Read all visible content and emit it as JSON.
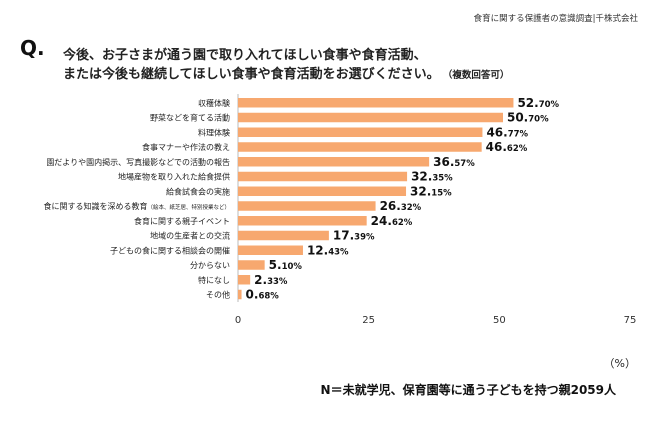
{
  "header": {
    "source": "食育に関する保護者の意識調査|千株式会社"
  },
  "question": {
    "mark": "Q.",
    "line1": "今後、お子さまが通う園で取り入れてほしい食事や食育活動、",
    "line2": "または今後も継続してほしい食事や食育活動をお選びください。",
    "note": "（複数回答可）"
  },
  "chart_data": {
    "type": "bar",
    "orientation": "horizontal",
    "categories": [
      "収穫体験",
      "野菜などを育てる活動",
      "料理体験",
      "食事マナーや作法の教え",
      "園だよりや園内掲示、写真撮影などでの活動の報告",
      "地場産物を取り入れた給食提供",
      "給食試食会の実施",
      "食に関する知識を深める教育",
      "食育に関する親子イベント",
      "地域の生産者との交流",
      "子どもの食に関する相談会の開催",
      "分からない",
      "特になし",
      "その他"
    ],
    "category_suffix": {
      "7": "（絵本、紙芝居、特別授業など）"
    },
    "values": [
      52.7,
      50.7,
      46.77,
      46.62,
      36.57,
      32.35,
      32.15,
      26.32,
      24.62,
      17.39,
      12.43,
      5.1,
      2.33,
      0.68
    ],
    "value_labels": [
      [
        "52.",
        "70%"
      ],
      [
        "50.",
        "70%"
      ],
      [
        "46.",
        "77%"
      ],
      [
        "46.",
        "62%"
      ],
      [
        "36.",
        "57%"
      ],
      [
        "32.",
        "35%"
      ],
      [
        "32.",
        "15%"
      ],
      [
        "26.",
        "32%"
      ],
      [
        "24.",
        "62%"
      ],
      [
        "17.",
        "39%"
      ],
      [
        "12.",
        "43%"
      ],
      [
        "5.",
        "10%"
      ],
      [
        "2.",
        "33%"
      ],
      [
        "0.",
        "68%"
      ]
    ],
    "xlim": [
      0,
      75
    ],
    "xticks": [
      "0",
      "25",
      "50",
      "75"
    ],
    "bar_color": "#f7a86f",
    "unit": "（%）"
  },
  "footnote": "N＝未就学児、保育園等に通う子どもを持つ親2059人"
}
